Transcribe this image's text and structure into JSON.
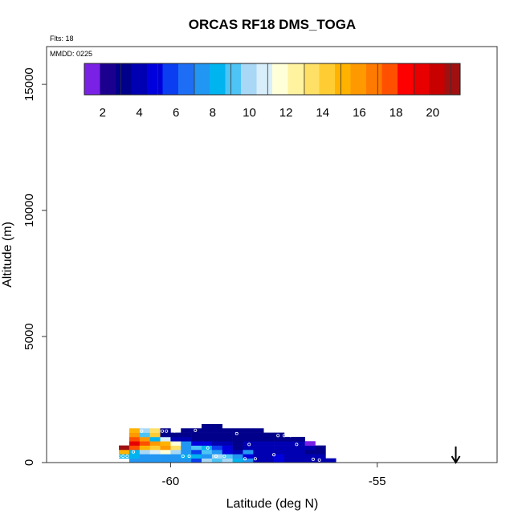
{
  "chart_data": {
    "type": "heatmap",
    "title": "ORCAS RF18 DMS_TOGA",
    "xlabel": "Latitude (deg N)",
    "ylabel": "Altitude (m)",
    "xlim": [
      -63,
      -52.1
    ],
    "ylim": [
      0,
      16500
    ],
    "x_ticks": [
      {
        "value": -60,
        "label": "-60"
      },
      {
        "value": -55,
        "label": "-55"
      }
    ],
    "y_ticks": [
      {
        "value": 0,
        "label": "0"
      },
      {
        "value": 5000,
        "label": "5000"
      },
      {
        "value": 10000,
        "label": "10000"
      },
      {
        "value": 15000,
        "label": "15000"
      }
    ],
    "flights_note": "Flts: 18",
    "date_note": "MMDD: 0225",
    "colorbar": {
      "min": 1,
      "max": 21.5,
      "tick_labels": [
        "2",
        "4",
        "6",
        "8",
        "10",
        "12",
        "14",
        "16",
        "18",
        "20"
      ],
      "tick_values": [
        2,
        4,
        6,
        8,
        10,
        12,
        14,
        16,
        18,
        20
      ],
      "colors": [
        "#7a21e6",
        "#1b008f",
        "#00008a",
        "#0000b2",
        "#0000dd",
        "#0a3ef0",
        "#1e6ef5",
        "#2196f3",
        "#00b4f0",
        "#4dc4f5",
        "#a8d8f5",
        "#d8eefa",
        "#ffffd8",
        "#fff3a0",
        "#ffe066",
        "#ffcc33",
        "#ffb300",
        "#ff9900",
        "#ff7a00",
        "#ff5000",
        "#ff0000",
        "#e80000",
        "#c80000",
        "#a01010"
      ]
    },
    "arrow_marker": {
      "lat": -53.1,
      "description": "down-arrow"
    },
    "cell_size": {
      "dlat": 0.25,
      "dalt": 170
    },
    "cells": [
      {
        "lat": -61.0,
        "alt": 85,
        "v": 7
      },
      {
        "lat": -60.75,
        "alt": 85,
        "v": 7
      },
      {
        "lat": -60.5,
        "alt": 85,
        "v": 7
      },
      {
        "lat": -60.25,
        "alt": 85,
        "v": 7
      },
      {
        "lat": -60.0,
        "alt": 85,
        "v": 7
      },
      {
        "lat": -59.75,
        "alt": 85,
        "v": 7
      },
      {
        "lat": -59.5,
        "alt": 85,
        "v": 6
      },
      {
        "lat": -59.25,
        "alt": 85,
        "v": 10
      },
      {
        "lat": -59.0,
        "alt": 85,
        "v": 9
      },
      {
        "lat": -58.75,
        "alt": 85,
        "v": 10
      },
      {
        "lat": -58.5,
        "alt": 85,
        "v": 8
      },
      {
        "lat": -58.25,
        "alt": 85,
        "v": 7
      },
      {
        "lat": -58.0,
        "alt": 85,
        "v": 4
      },
      {
        "lat": -57.75,
        "alt": 85,
        "v": 4
      },
      {
        "lat": -57.5,
        "alt": 85,
        "v": 5
      },
      {
        "lat": -57.25,
        "alt": 85,
        "v": 4
      },
      {
        "lat": -57.0,
        "alt": 85,
        "v": 4
      },
      {
        "lat": -56.75,
        "alt": 85,
        "v": 4
      },
      {
        "lat": -56.5,
        "alt": 85,
        "v": 4
      },
      {
        "lat": -56.25,
        "alt": 85,
        "v": 4
      },
      {
        "lat": -61.25,
        "alt": 255,
        "v": 8
      },
      {
        "lat": -61.0,
        "alt": 255,
        "v": 8
      },
      {
        "lat": -60.75,
        "alt": 255,
        "v": 7
      },
      {
        "lat": -60.5,
        "alt": 255,
        "v": 7
      },
      {
        "lat": -60.25,
        "alt": 255,
        "v": 7
      },
      {
        "lat": -60.0,
        "alt": 255,
        "v": 7
      },
      {
        "lat": -59.75,
        "alt": 255,
        "v": 8
      },
      {
        "lat": -59.5,
        "alt": 255,
        "v": 8
      },
      {
        "lat": -59.25,
        "alt": 255,
        "v": 7
      },
      {
        "lat": -59.0,
        "alt": 255,
        "v": 10
      },
      {
        "lat": -58.75,
        "alt": 255,
        "v": 9
      },
      {
        "lat": -58.5,
        "alt": 255,
        "v": 7
      },
      {
        "lat": -58.25,
        "alt": 255,
        "v": 5
      },
      {
        "lat": -58.0,
        "alt": 255,
        "v": 4
      },
      {
        "lat": -57.75,
        "alt": 255,
        "v": 4
      },
      {
        "lat": -57.5,
        "alt": 255,
        "v": 5
      },
      {
        "lat": -57.25,
        "alt": 255,
        "v": 4
      },
      {
        "lat": -57.0,
        "alt": 255,
        "v": 4
      },
      {
        "lat": -56.75,
        "alt": 255,
        "v": 4
      },
      {
        "lat": -56.5,
        "alt": 255,
        "v": 4
      },
      {
        "lat": -61.25,
        "alt": 425,
        "v": 15
      },
      {
        "lat": -61.0,
        "alt": 425,
        "v": 8
      },
      {
        "lat": -60.75,
        "alt": 425,
        "v": 10
      },
      {
        "lat": -60.5,
        "alt": 425,
        "v": 11
      },
      {
        "lat": -60.25,
        "alt": 425,
        "v": 12
      },
      {
        "lat": -60.0,
        "alt": 425,
        "v": 10
      },
      {
        "lat": -59.75,
        "alt": 425,
        "v": 7
      },
      {
        "lat": -59.5,
        "alt": 425,
        "v": 6
      },
      {
        "lat": -59.25,
        "alt": 425,
        "v": 9
      },
      {
        "lat": -59.0,
        "alt": 425,
        "v": 7
      },
      {
        "lat": -58.75,
        "alt": 425,
        "v": 5
      },
      {
        "lat": -58.5,
        "alt": 425,
        "v": 4
      },
      {
        "lat": -58.25,
        "alt": 425,
        "v": 7
      },
      {
        "lat": -58.0,
        "alt": 425,
        "v": 4
      },
      {
        "lat": -57.75,
        "alt": 425,
        "v": 4
      },
      {
        "lat": -57.5,
        "alt": 425,
        "v": 4
      },
      {
        "lat": -57.25,
        "alt": 425,
        "v": 4
      },
      {
        "lat": -57.0,
        "alt": 425,
        "v": 4
      },
      {
        "lat": -56.75,
        "alt": 425,
        "v": 3
      },
      {
        "lat": -56.5,
        "alt": 425,
        "v": 3
      },
      {
        "lat": -61.25,
        "alt": 595,
        "v": 21
      },
      {
        "lat": -61.0,
        "alt": 595,
        "v": 18
      },
      {
        "lat": -60.75,
        "alt": 595,
        "v": 15
      },
      {
        "lat": -60.5,
        "alt": 595,
        "v": 14
      },
      {
        "lat": -60.25,
        "alt": 595,
        "v": 16
      },
      {
        "lat": -60.0,
        "alt": 595,
        "v": 13
      },
      {
        "lat": -59.75,
        "alt": 595,
        "v": 7
      },
      {
        "lat": -59.5,
        "alt": 595,
        "v": 9
      },
      {
        "lat": -59.25,
        "alt": 595,
        "v": 8
      },
      {
        "lat": -59.0,
        "alt": 595,
        "v": 6
      },
      {
        "lat": -58.75,
        "alt": 595,
        "v": 5
      },
      {
        "lat": -58.5,
        "alt": 595,
        "v": 3
      },
      {
        "lat": -58.25,
        "alt": 595,
        "v": 4
      },
      {
        "lat": -58.0,
        "alt": 595,
        "v": 4
      },
      {
        "lat": -57.75,
        "alt": 595,
        "v": 4
      },
      {
        "lat": -57.5,
        "alt": 595,
        "v": 4
      },
      {
        "lat": -57.25,
        "alt": 595,
        "v": 4
      },
      {
        "lat": -57.0,
        "alt": 595,
        "v": 4
      },
      {
        "lat": -56.75,
        "alt": 595,
        "v": 4
      },
      {
        "lat": -56.5,
        "alt": 595,
        "v": 3
      },
      {
        "lat": -61.0,
        "alt": 765,
        "v": 19
      },
      {
        "lat": -60.75,
        "alt": 765,
        "v": 18
      },
      {
        "lat": -60.5,
        "alt": 765,
        "v": 16
      },
      {
        "lat": -60.25,
        "alt": 765,
        "v": 15
      },
      {
        "lat": -60.0,
        "alt": 765,
        "v": 12
      },
      {
        "lat": -59.75,
        "alt": 765,
        "v": 7
      },
      {
        "lat": -59.5,
        "alt": 765,
        "v": 5
      },
      {
        "lat": -59.25,
        "alt": 765,
        "v": 5
      },
      {
        "lat": -59.0,
        "alt": 765,
        "v": 4
      },
      {
        "lat": -58.75,
        "alt": 765,
        "v": 4
      },
      {
        "lat": -58.5,
        "alt": 765,
        "v": 3
      },
      {
        "lat": -58.25,
        "alt": 765,
        "v": 4
      },
      {
        "lat": -58.0,
        "alt": 765,
        "v": 4
      },
      {
        "lat": -57.75,
        "alt": 765,
        "v": 4
      },
      {
        "lat": -57.5,
        "alt": 765,
        "v": 4
      },
      {
        "lat": -57.25,
        "alt": 765,
        "v": 4
      },
      {
        "lat": -57.0,
        "alt": 765,
        "v": 4
      },
      {
        "lat": -56.75,
        "alt": 765,
        "v": 1
      },
      {
        "lat": -61.0,
        "alt": 935,
        "v": 18
      },
      {
        "lat": -60.75,
        "alt": 935,
        "v": 16
      },
      {
        "lat": -60.5,
        "alt": 935,
        "v": 8
      },
      {
        "lat": -60.25,
        "alt": 935,
        "v": 11
      },
      {
        "lat": -60.0,
        "alt": 935,
        "v": 4
      },
      {
        "lat": -59.75,
        "alt": 935,
        "v": 4
      },
      {
        "lat": -59.5,
        "alt": 935,
        "v": 3
      },
      {
        "lat": -59.25,
        "alt": 935,
        "v": 3
      },
      {
        "lat": -59.0,
        "alt": 935,
        "v": 3
      },
      {
        "lat": -58.75,
        "alt": 935,
        "v": 3
      },
      {
        "lat": -58.5,
        "alt": 935,
        "v": 3
      },
      {
        "lat": -58.25,
        "alt": 935,
        "v": 3
      },
      {
        "lat": -58.0,
        "alt": 935,
        "v": 3
      },
      {
        "lat": -57.75,
        "alt": 935,
        "v": 3
      },
      {
        "lat": -57.5,
        "alt": 935,
        "v": 3
      },
      {
        "lat": -57.25,
        "alt": 935,
        "v": 3
      },
      {
        "lat": -57.0,
        "alt": 935,
        "v": 3
      },
      {
        "lat": -61.0,
        "alt": 1105,
        "v": 16
      },
      {
        "lat": -60.75,
        "alt": 1105,
        "v": 9
      },
      {
        "lat": -60.5,
        "alt": 1105,
        "v": 14
      },
      {
        "lat": -60.25,
        "alt": 1105,
        "v": 3
      },
      {
        "lat": -60.0,
        "alt": 1105,
        "v": 3
      },
      {
        "lat": -59.75,
        "alt": 1105,
        "v": 3
      },
      {
        "lat": -59.5,
        "alt": 1105,
        "v": 3
      },
      {
        "lat": -59.25,
        "alt": 1105,
        "v": 3
      },
      {
        "lat": -59.0,
        "alt": 1105,
        "v": 3
      },
      {
        "lat": -58.75,
        "alt": 1105,
        "v": 3
      },
      {
        "lat": -58.5,
        "alt": 1105,
        "v": 3
      },
      {
        "lat": -58.25,
        "alt": 1105,
        "v": 3
      },
      {
        "lat": -58.0,
        "alt": 1105,
        "v": 3
      },
      {
        "lat": -57.75,
        "alt": 1105,
        "v": 3
      },
      {
        "lat": -57.5,
        "alt": 1105,
        "v": 3
      },
      {
        "lat": -59.25,
        "alt": 1275,
        "v": 3
      },
      {
        "lat": -59.0,
        "alt": 1275,
        "v": 3
      },
      {
        "lat": -59.25,
        "alt": 1445,
        "v": 3
      },
      {
        "lat": -59.0,
        "alt": 1445,
        "v": 3
      },
      {
        "lat": -61.0,
        "alt": 1275,
        "v": 15
      },
      {
        "lat": -60.75,
        "alt": 1275,
        "v": 10
      },
      {
        "lat": -60.5,
        "alt": 1275,
        "v": 13
      },
      {
        "lat": -60.25,
        "alt": 1275,
        "v": 3
      },
      {
        "lat": -59.75,
        "alt": 1275,
        "v": 3
      },
      {
        "lat": -59.5,
        "alt": 1275,
        "v": 3
      },
      {
        "lat": -58.75,
        "alt": 1275,
        "v": 3
      },
      {
        "lat": -58.5,
        "alt": 1275,
        "v": 3
      },
      {
        "lat": -58.25,
        "alt": 1275,
        "v": 3
      },
      {
        "lat": -58.0,
        "alt": 1275,
        "v": 3
      }
    ],
    "sample_points": [
      {
        "lat": -61.25,
        "alt": 250
      },
      {
        "lat": -61.15,
        "alt": 250
      },
      {
        "lat": -61.05,
        "alt": 250
      },
      {
        "lat": -60.9,
        "alt": 420
      },
      {
        "lat": -60.7,
        "alt": 1250
      },
      {
        "lat": -60.2,
        "alt": 1250
      },
      {
        "lat": -60.1,
        "alt": 1250
      },
      {
        "lat": -59.9,
        "alt": 1250
      },
      {
        "lat": -59.7,
        "alt": 250
      },
      {
        "lat": -59.55,
        "alt": 250
      },
      {
        "lat": -59.4,
        "alt": 1280
      },
      {
        "lat": -59.1,
        "alt": 580
      },
      {
        "lat": -58.9,
        "alt": 250
      },
      {
        "lat": -58.7,
        "alt": 250
      },
      {
        "lat": -58.4,
        "alt": 1150
      },
      {
        "lat": -58.2,
        "alt": 150
      },
      {
        "lat": -58.1,
        "alt": 720
      },
      {
        "lat": -57.95,
        "alt": 150
      },
      {
        "lat": -57.5,
        "alt": 310
      },
      {
        "lat": -57.4,
        "alt": 1070
      },
      {
        "lat": -57.25,
        "alt": 1070
      },
      {
        "lat": -57.1,
        "alt": 1070
      },
      {
        "lat": -56.95,
        "alt": 720
      },
      {
        "lat": -56.55,
        "alt": 130
      },
      {
        "lat": -56.4,
        "alt": 100
      }
    ]
  }
}
